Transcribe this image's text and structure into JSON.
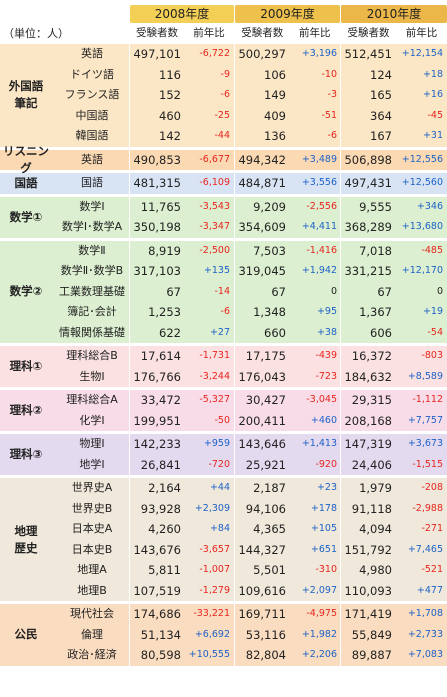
{
  "unit_label": "（単位：人）",
  "years": [
    {
      "label": "2008年度",
      "c1": "受験者数",
      "c2": "前年比"
    },
    {
      "label": "2009年度",
      "c1": "受験者数",
      "c2": "前年比"
    },
    {
      "label": "2010年度",
      "c1": "受験者数",
      "c2": "前年比"
    }
  ],
  "colors": {
    "header_2008": "#f3cf55",
    "header_2009": "#eec14d",
    "header_2010": "#ebb748",
    "increase_text": "#1d62c8",
    "decrease_text": "#e8251f"
  },
  "groups": [
    {
      "name": "外国語\n筆記",
      "color": "#fbe7c6",
      "rows": [
        {
          "subject": "英語",
          "cells": [
            "497,101",
            "-6,722",
            "500,297",
            "+3,196",
            "512,451",
            "+12,154"
          ]
        },
        {
          "subject": "ドイツ語",
          "cells": [
            "116",
            "-9",
            "106",
            "-10",
            "124",
            "+18"
          ]
        },
        {
          "subject": "フランス語",
          "cells": [
            "152",
            "-6",
            "149",
            "-3",
            "165",
            "+16"
          ]
        },
        {
          "subject": "中国語",
          "cells": [
            "460",
            "-25",
            "409",
            "-51",
            "364",
            "-45"
          ]
        },
        {
          "subject": "韓国語",
          "cells": [
            "142",
            "-44",
            "136",
            "-6",
            "167",
            "+31"
          ]
        }
      ]
    },
    {
      "name": "リスニング",
      "color": "#fad9b3",
      "rows": [
        {
          "subject": "英語",
          "cells": [
            "490,853",
            "-6,677",
            "494,342",
            "+3,489",
            "506,898",
            "+12,556"
          ]
        }
      ]
    },
    {
      "name": "国語",
      "color": "#d8e4f4",
      "rows": [
        {
          "subject": "国語",
          "cells": [
            "481,315",
            "-6,109",
            "484,871",
            "+3,556",
            "497,431",
            "+12,560"
          ]
        }
      ]
    },
    {
      "name": "数学①",
      "color": "#dcefd0",
      "rows": [
        {
          "subject": "数学Ⅰ",
          "cells": [
            "11,765",
            "-3,543",
            "9,209",
            "-2,556",
            "9,555",
            "+346"
          ]
        },
        {
          "subject": "数学Ⅰ･数学A",
          "cells": [
            "350,198",
            "-3,347",
            "354,609",
            "+4,411",
            "368,289",
            "+13,680"
          ]
        }
      ]
    },
    {
      "name": "数学②",
      "color": "#dcefd0",
      "rows": [
        {
          "subject": "数学Ⅱ",
          "cells": [
            "8,919",
            "-2,500",
            "7,503",
            "-1,416",
            "7,018",
            "-485"
          ]
        },
        {
          "subject": "数学Ⅱ･数学B",
          "cells": [
            "317,103",
            "+135",
            "319,045",
            "+1,942",
            "331,215",
            "+12,170"
          ]
        },
        {
          "subject": "工業数理基礎",
          "cells": [
            "67",
            "-14",
            "67",
            "0",
            "67",
            "0"
          ]
        },
        {
          "subject": "簿記･会計",
          "cells": [
            "1,253",
            "-6",
            "1,348",
            "+95",
            "1,367",
            "+19"
          ]
        },
        {
          "subject": "情報関係基礎",
          "cells": [
            "622",
            "+27",
            "660",
            "+38",
            "606",
            "-54"
          ]
        }
      ]
    },
    {
      "name": "理科①",
      "color": "#fbe1e1",
      "rows": [
        {
          "subject": "理科総合B",
          "cells": [
            "17,614",
            "-1,731",
            "17,175",
            "-439",
            "16,372",
            "-803"
          ]
        },
        {
          "subject": "生物Ⅰ",
          "cells": [
            "176,766",
            "-3,244",
            "176,043",
            "-723",
            "184,632",
            "+8,589"
          ]
        }
      ]
    },
    {
      "name": "理科②",
      "color": "#f8dde8",
      "rows": [
        {
          "subject": "理科総合A",
          "cells": [
            "33,472",
            "-5,327",
            "30,427",
            "-3,045",
            "29,315",
            "-1,112"
          ]
        },
        {
          "subject": "化学Ⅰ",
          "cells": [
            "199,951",
            "-50",
            "200,411",
            "+460",
            "208,168",
            "+7,757"
          ]
        }
      ]
    },
    {
      "name": "理科③",
      "color": "#e4daef",
      "rows": [
        {
          "subject": "物理Ⅰ",
          "cells": [
            "142,233",
            "+959",
            "143,646",
            "+1,413",
            "147,319",
            "+3,673"
          ]
        },
        {
          "subject": "地学Ⅰ",
          "cells": [
            "26,841",
            "-720",
            "25,921",
            "-920",
            "24,406",
            "-1,515"
          ]
        }
      ]
    },
    {
      "name": "地理\n歴史",
      "color": "#f0e8da",
      "rows": [
        {
          "subject": "世界史A",
          "cells": [
            "2,164",
            "+44",
            "2,187",
            "+23",
            "1,979",
            "-208"
          ]
        },
        {
          "subject": "世界史B",
          "cells": [
            "93,928",
            "+2,309",
            "94,106",
            "+178",
            "91,118",
            "-2,988"
          ]
        },
        {
          "subject": "日本史A",
          "cells": [
            "4,260",
            "+84",
            "4,365",
            "+105",
            "4,094",
            "-271"
          ]
        },
        {
          "subject": "日本史B",
          "cells": [
            "143,676",
            "-3,657",
            "144,327",
            "+651",
            "151,792",
            "+7,465"
          ]
        },
        {
          "subject": "地理A",
          "cells": [
            "5,811",
            "-1,007",
            "5,501",
            "-310",
            "4,980",
            "-521"
          ]
        },
        {
          "subject": "地理B",
          "cells": [
            "107,519",
            "-1,279",
            "109,616",
            "+2,097",
            "110,093",
            "+477"
          ]
        }
      ]
    },
    {
      "name": "公民",
      "color": "#fadcc0",
      "rows": [
        {
          "subject": "現代社会",
          "cells": [
            "174,686",
            "-33,221",
            "169,711",
            "-4,975",
            "171,419",
            "+1,708"
          ]
        },
        {
          "subject": "倫理",
          "cells": [
            "51,134",
            "+6,692",
            "53,116",
            "+1,982",
            "55,849",
            "+2,733"
          ]
        },
        {
          "subject": "政治･経済",
          "cells": [
            "80,598",
            "+10,555",
            "82,804",
            "+2,206",
            "89,887",
            "+7,083"
          ]
        }
      ]
    }
  ]
}
